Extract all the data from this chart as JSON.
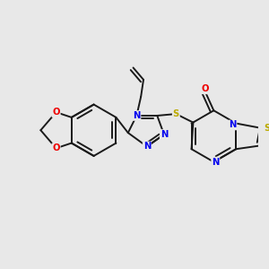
{
  "bg": "#e8e8e8",
  "bc": "#1a1a1a",
  "bw": 1.4,
  "atom_colors": {
    "N": "#0000ee",
    "O": "#ee0000",
    "S": "#bbaa00",
    "C": "#1a1a1a"
  },
  "fs": 7.2
}
